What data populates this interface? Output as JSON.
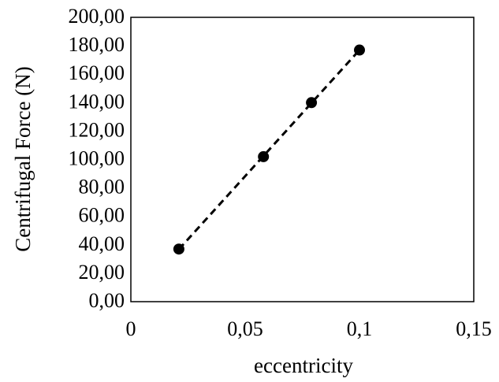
{
  "chart_data": {
    "type": "scatter",
    "title": "",
    "xlabel": "eccentricity",
    "ylabel": "Centrifugal Force (N)",
    "xlim": [
      0,
      0.15
    ],
    "ylim": [
      0,
      200
    ],
    "x_ticks": [
      "0",
      "0,05",
      "0,1",
      "0,15"
    ],
    "y_ticks": [
      "0,00",
      "20,00",
      "40,00",
      "60,00",
      "80,00",
      "100,00",
      "120,00",
      "140,00",
      "160,00",
      "180,00",
      "200,00"
    ],
    "grid": false,
    "legend": "none",
    "series": [
      {
        "x": [
          0.021,
          0.058,
          0.079,
          0.1
        ],
        "y": [
          37,
          102,
          140,
          177
        ],
        "marker": "filled-circle",
        "trendline": "linear-dashed",
        "color": "#000000"
      }
    ]
  }
}
